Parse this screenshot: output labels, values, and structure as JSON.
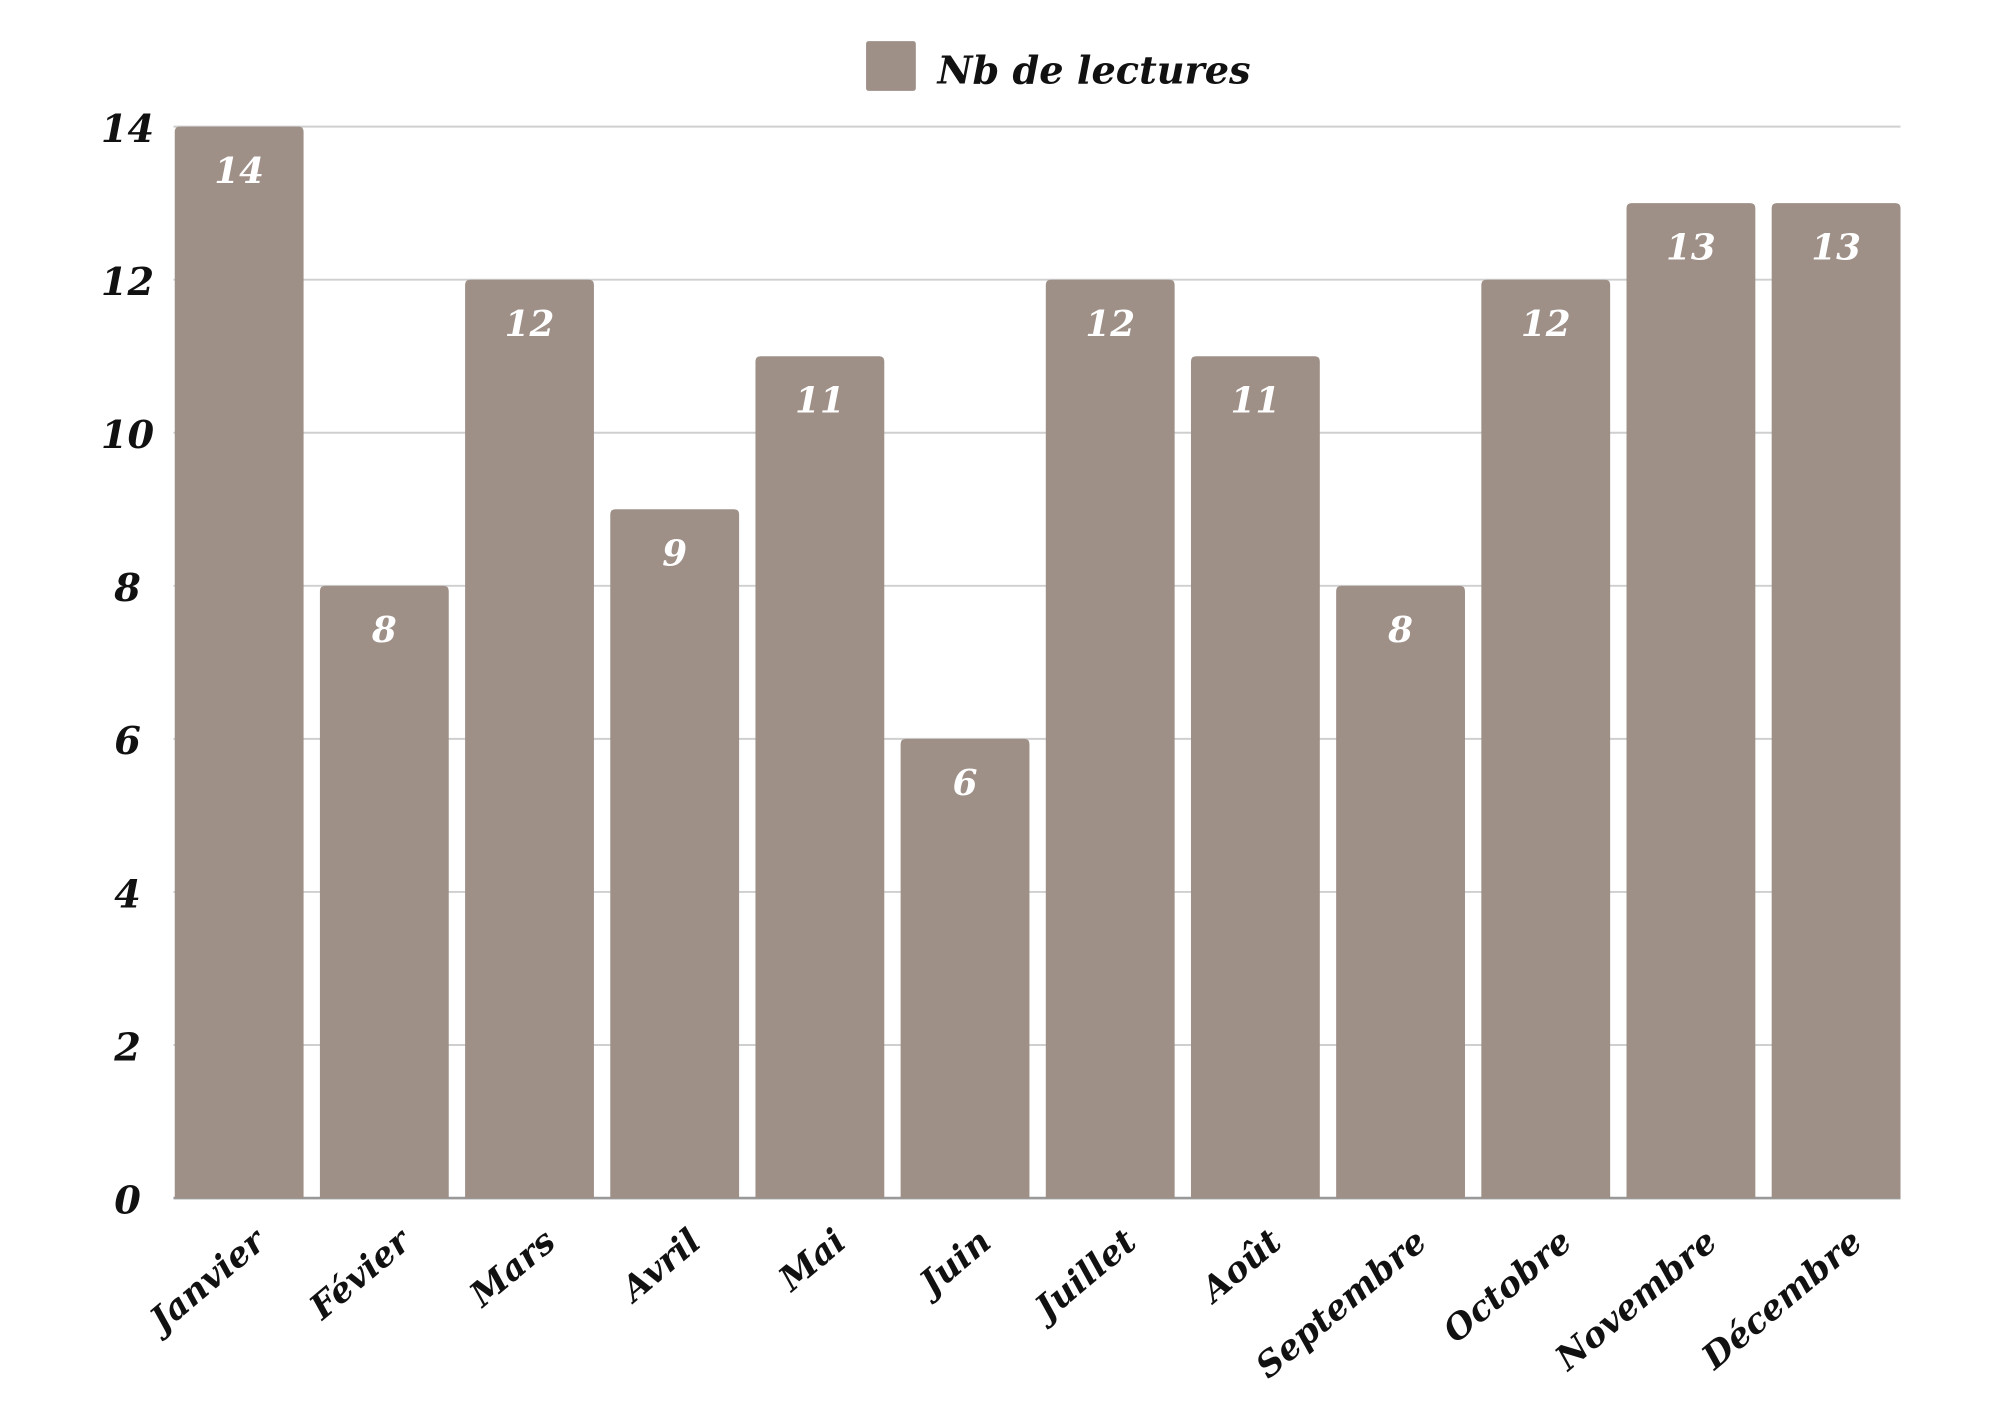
{
  "chart_data": {
    "type": "bar",
    "title": "",
    "xlabel": "",
    "ylabel": "",
    "categories": [
      "Janvier",
      "Févier",
      "Mars",
      "Avril",
      "Mai",
      "Juin",
      "Juillet",
      "Août",
      "Septembre",
      "Octobre",
      "Novembre",
      "Décembre"
    ],
    "series": [
      {
        "name": "Nb de lectures",
        "values": [
          14,
          8,
          12,
          9,
          11,
          6,
          12,
          11,
          8,
          12,
          13,
          13
        ],
        "color": "#9e8f87"
      }
    ],
    "ylim": [
      0,
      14
    ],
    "yticks": [
      "0",
      "2",
      "4",
      "6",
      "8",
      "10",
      "12",
      "14"
    ],
    "grid": true,
    "legend": "top-center",
    "data_labels": true
  }
}
